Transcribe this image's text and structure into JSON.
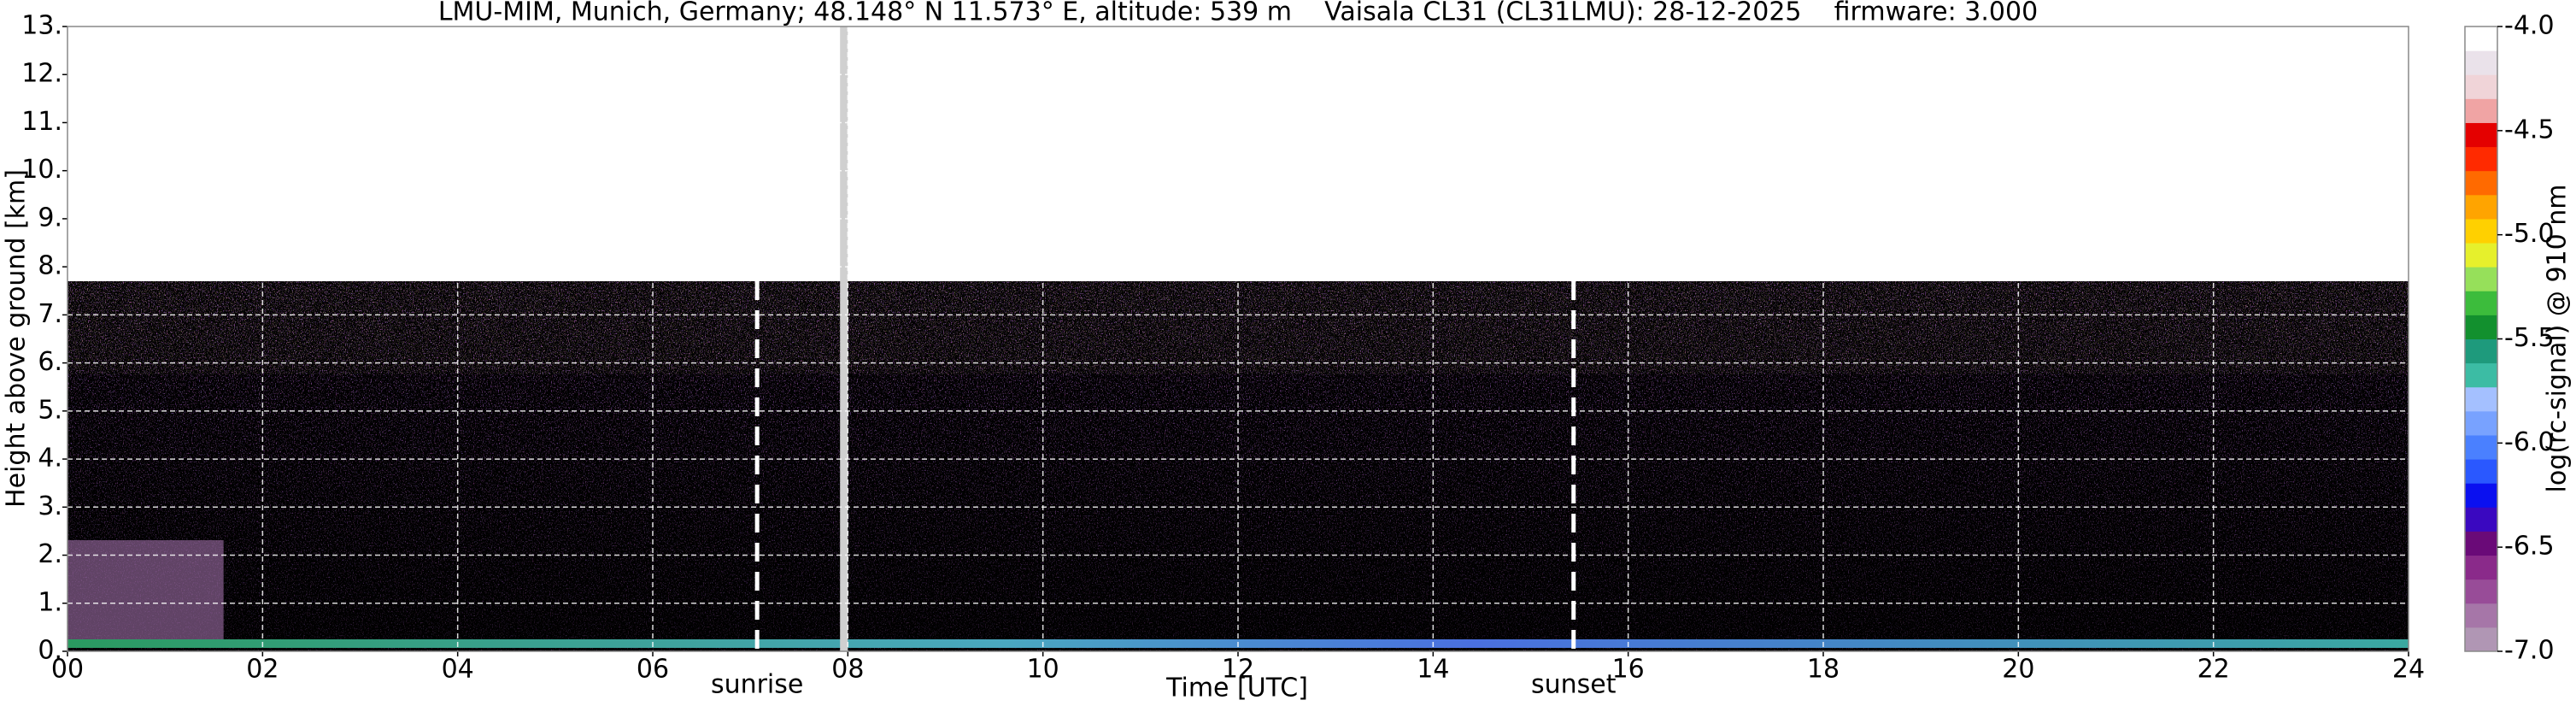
{
  "chart_data": {
    "type": "heatmap",
    "title": "LMU-MIM, Munich, Germany; 48.148° N 11.573° E, altitude: 539 m    Vaisala CL31 (CL31LMU): 28-12-2025    firmware: 3.000",
    "x_label": "Time [UTC]",
    "y_label": "Height above ground [km]",
    "xlim": [
      0,
      24
    ],
    "xticks": [
      {
        "value": 0,
        "label": "00"
      },
      {
        "value": 2,
        "label": "02"
      },
      {
        "value": 4,
        "label": "04"
      },
      {
        "value": 6,
        "label": "06"
      },
      {
        "value": 8,
        "label": "08"
      },
      {
        "value": 10,
        "label": "10"
      },
      {
        "value": 12,
        "label": "12"
      },
      {
        "value": 14,
        "label": "14"
      },
      {
        "value": 16,
        "label": "16"
      },
      {
        "value": 18,
        "label": "18"
      },
      {
        "value": 20,
        "label": "20"
      },
      {
        "value": 22,
        "label": "22"
      },
      {
        "value": 24,
        "label": "24"
      }
    ],
    "ylim": [
      0,
      13
    ],
    "yticks": [
      {
        "value": 0,
        "label": "0."
      },
      {
        "value": 1,
        "label": "1."
      },
      {
        "value": 2,
        "label": "2."
      },
      {
        "value": 3,
        "label": "3."
      },
      {
        "value": 4,
        "label": "4."
      },
      {
        "value": 5,
        "label": "5."
      },
      {
        "value": 6,
        "label": "6."
      },
      {
        "value": 7,
        "label": "7."
      },
      {
        "value": 8,
        "label": "8."
      },
      {
        "value": 9,
        "label": "9."
      },
      {
        "value": 10,
        "label": "10."
      },
      {
        "value": 11,
        "label": "11."
      },
      {
        "value": 12,
        "label": "12."
      },
      {
        "value": 13,
        "label": "13."
      }
    ],
    "grid": true,
    "data_top": 7.7,
    "data_gap": [
      7.92,
      8.0
    ],
    "annotations": [
      {
        "text": "sunrise",
        "x": 7.07
      },
      {
        "text": "sunset",
        "x": 15.44
      }
    ],
    "colorbar": {
      "label": "log(rc-signal) @ 910 nm",
      "lim": [
        -7,
        -4
      ],
      "ticks": [
        {
          "value": -7,
          "label": "-7.0"
        },
        {
          "value": -6.5,
          "label": "-6.5"
        },
        {
          "value": -6,
          "label": "-6.0"
        },
        {
          "value": -5.5,
          "label": "-5.5"
        },
        {
          "value": -5,
          "label": "-5.0"
        },
        {
          "value": -4.5,
          "label": "-4.5"
        },
        {
          "value": -4,
          "label": "-4.0"
        }
      ],
      "colors": [
        "#b096b4",
        "#a676a8",
        "#984c98",
        "#8a2a8a",
        "#6a0a78",
        "#3a08c0",
        "#0a10f0",
        "#2a58ff",
        "#4a80ff",
        "#78a2ff",
        "#a4c0ff",
        "#3cbca4",
        "#1e9a7c",
        "#12902e",
        "#3cbc3c",
        "#96e05a",
        "#e6f02c",
        "#ffd000",
        "#ffa400",
        "#ff6a00",
        "#ff2a00",
        "#e40000",
        "#f0a4a4",
        "#f0d4d8",
        "#eae2ea",
        "#ffffff"
      ]
    }
  }
}
